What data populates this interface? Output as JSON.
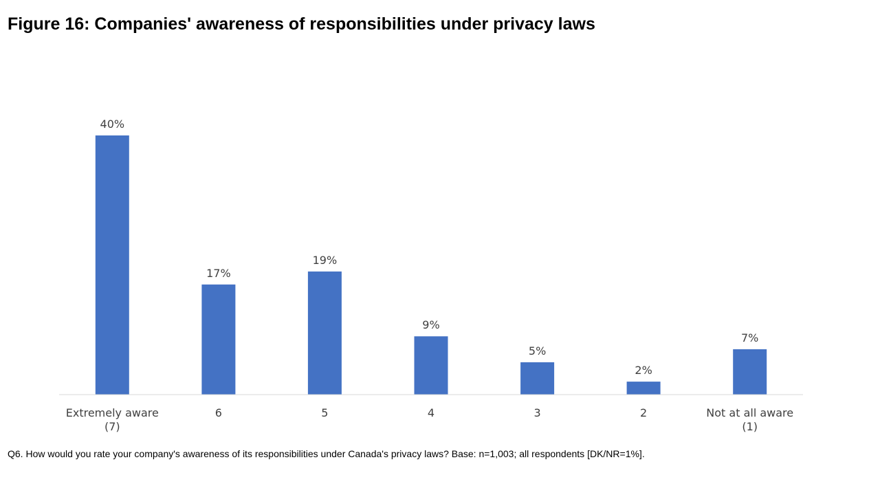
{
  "title": "Figure 16: Companies' awareness of responsibilities under privacy laws",
  "footnote": "Q6. How would you rate your company's awareness of its responsibilities under Canada's privacy laws? Base: n=1,003; all respondents [DK/NR=1%].",
  "colors": {
    "bar": "#4472C4",
    "axis": "#D9D9D9",
    "text": "#404040"
  },
  "chart_data": {
    "type": "bar",
    "categories": [
      [
        "Extremely aware",
        "(7)"
      ],
      [
        "6"
      ],
      [
        "5"
      ],
      [
        "4"
      ],
      [
        "3"
      ],
      [
        "2"
      ],
      [
        "Not at all aware",
        "(1)"
      ]
    ],
    "values": [
      40,
      17,
      19,
      9,
      5,
      2,
      7
    ],
    "data_labels": [
      "40%",
      "17%",
      "19%",
      "9%",
      "5%",
      "2%",
      "7%"
    ],
    "unit": "%",
    "ylim": [
      0,
      40
    ],
    "grid": false,
    "legend": "none"
  }
}
